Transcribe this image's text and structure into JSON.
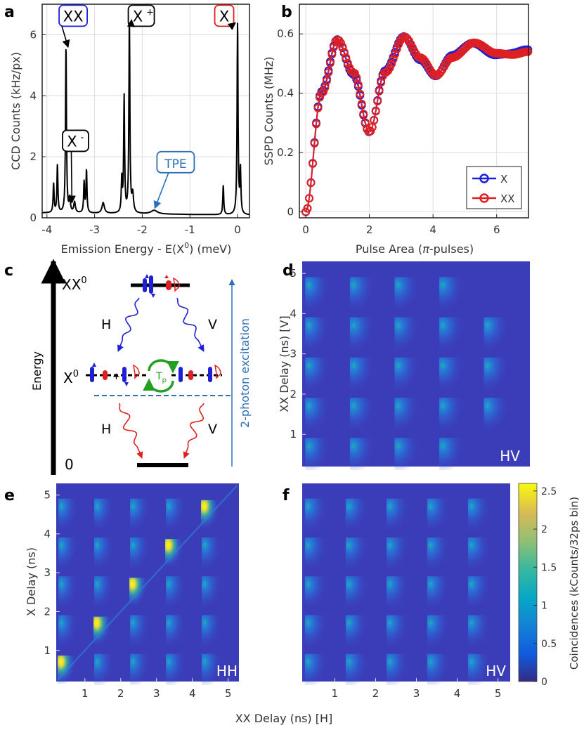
{
  "panel_letters": [
    "a",
    "b",
    "c",
    "d",
    "e",
    "f"
  ],
  "colors": {
    "blue": "#1f1fd6",
    "red": "#e02020",
    "tpe_blue": "#2c6fb7",
    "green": "#22a022",
    "map_bg": "#3b3db8"
  },
  "chart_data": [
    {
      "panel": "a",
      "type": "line",
      "xlabel_parts": [
        "Emission Energy - E(X",
        "0",
        ") (meV)"
      ],
      "ylabel": "CCD Counts (kHz/px)",
      "xlim": [
        -4.1,
        0.25
      ],
      "ylim": [
        0,
        7
      ],
      "xticks": [
        -4,
        -3,
        -2,
        -1,
        0
      ],
      "yticks": [
        0,
        2,
        4,
        6
      ],
      "grid": true,
      "baseline": 0.12,
      "peaks": [
        {
          "x": -3.86,
          "y": 0.95,
          "w": 0.012
        },
        {
          "x": -3.78,
          "y": 1.55,
          "w": 0.012
        },
        {
          "x": -3.6,
          "y": 5.5,
          "w": 0.012
        },
        {
          "x": -3.52,
          "y": 0.45,
          "w": 0.015
        },
        {
          "x": -3.42,
          "y": 0.35,
          "w": 0.02
        },
        {
          "x": -3.22,
          "y": 1.0,
          "w": 0.012
        },
        {
          "x": -3.17,
          "y": 1.4,
          "w": 0.012
        },
        {
          "x": -2.82,
          "y": 0.35,
          "w": 0.03
        },
        {
          "x": -2.43,
          "y": 1.1,
          "w": 0.012
        },
        {
          "x": -2.38,
          "y": 3.8,
          "w": 0.012
        },
        {
          "x": -2.27,
          "y": 6.4,
          "w": 0.012
        },
        {
          "x": -2.2,
          "y": 0.6,
          "w": 0.02
        },
        {
          "x": -1.75,
          "y": 0.12,
          "w": 0.08
        },
        {
          "x": -0.3,
          "y": 0.95,
          "w": 0.012
        },
        {
          "x": 0.0,
          "y": 6.3,
          "w": 0.012
        },
        {
          "x": 0.06,
          "y": 1.45,
          "w": 0.012
        }
      ],
      "annotations": [
        {
          "label": "XX",
          "sup": "",
          "color": "#1f1fd6",
          "text_xy": [
            -3.45,
            6.6
          ],
          "target": [
            -3.6,
            5.5
          ]
        },
        {
          "label": "X",
          "sup": "+",
          "color": "#000000",
          "text_xy": [
            -2.02,
            6.6
          ],
          "target": [
            -2.27,
            6.4
          ]
        },
        {
          "label": "X",
          "sup": "",
          "color": "#e02020",
          "text_xy": [
            -0.28,
            6.6
          ],
          "target": [
            0.0,
            6.3
          ]
        },
        {
          "label": "X",
          "sup": "-",
          "color": "#000000",
          "text_xy": [
            -3.4,
            2.5
          ],
          "target": [
            -3.52,
            0.4
          ]
        },
        {
          "label": "TPE",
          "sup": "",
          "color": "#2c6fb7",
          "text_xy": [
            -1.3,
            1.8
          ],
          "target": [
            -1.78,
            0.22
          ]
        }
      ]
    },
    {
      "panel": "b",
      "type": "scatter",
      "xlabel_parts": [
        "Pulse Area (",
        "π",
        "-pulses)"
      ],
      "ylabel": "SSPD Counts (MHz)",
      "xlim": [
        -0.2,
        7
      ],
      "ylim": [
        -0.02,
        0.7
      ],
      "xticks": [
        0,
        2,
        4,
        6
      ],
      "yticks": [
        0,
        0.2,
        0.4,
        0.6
      ],
      "grid": true,
      "legend_position": "bottom-right",
      "series": [
        {
          "name": "X",
          "color": "#1f1fd6"
        },
        {
          "name": "XX",
          "color": "#e02020"
        }
      ],
      "curve_knots_x": [
        0,
        0.5,
        1.0,
        1.5,
        2.0,
        2.5,
        3.1,
        3.6,
        4.1,
        4.6,
        5.3,
        6.0,
        6.5,
        7.0
      ],
      "curve_knots_y": [
        0.0,
        0.4,
        0.58,
        0.47,
        0.27,
        0.47,
        0.59,
        0.52,
        0.46,
        0.52,
        0.57,
        0.535,
        0.53,
        0.54
      ]
    },
    {
      "panel": "d",
      "type": "heatmap",
      "xlabel": "",
      "ylabel": "XX Delay (ns) [V]",
      "inset_label": "HV",
      "xlim": [
        0.2,
        5.3
      ],
      "ylim": [
        0.2,
        5.3
      ],
      "yticks": [
        1,
        2,
        3,
        4,
        5
      ],
      "grid": false,
      "peak_intensity": 0.35,
      "diagonal": false,
      "missing_peaks": [
        [
          4,
          4
        ],
        [
          4,
          0
        ]
      ]
    },
    {
      "panel": "e",
      "type": "heatmap",
      "ylabel": "X Delay (ns)",
      "inset_label": "HH",
      "xlim": [
        0.2,
        5.3
      ],
      "ylim": [
        0.2,
        5.3
      ],
      "xticks": [
        1,
        2,
        3,
        4,
        5
      ],
      "yticks": [
        1,
        2,
        3,
        4,
        5
      ],
      "grid": false,
      "peak_intensity": 0.35,
      "diagonal": true,
      "diagonal_intensity": 2.5,
      "missing_peaks": []
    },
    {
      "panel": "f",
      "type": "heatmap",
      "inset_label": "HV",
      "xlim": [
        0.2,
        5.3
      ],
      "ylim": [
        0.2,
        5.3
      ],
      "xticks": [
        1,
        2,
        3,
        4,
        5
      ],
      "grid": false,
      "peak_intensity": 0.35,
      "diagonal": false,
      "missing_peaks": []
    }
  ],
  "shared_xlabel": "XX Delay (ns) [H]",
  "colorbar": {
    "label": "Coincidences (kCounts/32ps bin)",
    "ticks": [
      0,
      0.5,
      1,
      1.5,
      2,
      2.5
    ],
    "range": [
      0,
      2.6
    ],
    "colormap": "parula"
  },
  "diagram": {
    "axis_label": "Energy",
    "xx_level": "XX",
    "xx_sup": "0",
    "x_level": "X",
    "x_sup": "0",
    "ground_level": "0",
    "left_photon": "H",
    "right_photon": "V",
    "left_photon_lower": "H",
    "right_photon_lower": "V",
    "tp_main": "T",
    "tp_sub": "p",
    "excitation_label": "2-photon excitation",
    "plus_sign": "+",
    "minus_sign": "-"
  }
}
